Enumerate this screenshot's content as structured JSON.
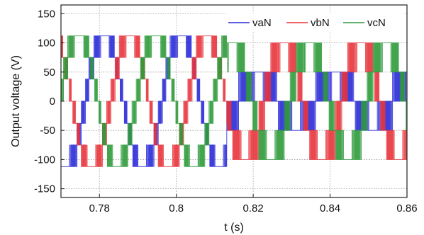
{
  "chart_data": {
    "type": "line",
    "title": "",
    "xlabel": "t (s)",
    "ylabel": "Output voltage (V)",
    "xlim": [
      0.77,
      0.86
    ],
    "ylim": [
      -165,
      165
    ],
    "x_ticks": [
      0.78,
      0.8,
      0.82,
      0.84,
      0.86
    ],
    "x_tick_labels": [
      "0.78",
      "0.8",
      "0.82",
      "0.84",
      "0.86"
    ],
    "y_ticks": [
      150,
      100,
      50,
      0,
      -50,
      -100,
      -150
    ],
    "y_tick_labels": [
      "150",
      "100",
      "50",
      "0",
      "-50",
      "-100",
      "-150"
    ],
    "grid": true,
    "legend_position": "top-right",
    "fault_time": 0.813,
    "series": [
      {
        "name": "vaN",
        "color": "#2a2ad8",
        "phase_deg": 0,
        "levels_before": [
          -112,
          -75,
          -38,
          0,
          38,
          75,
          112
        ],
        "levels_after": [
          -50,
          0,
          50
        ]
      },
      {
        "name": "vbN",
        "color": "#e8343c",
        "phase_deg": -120,
        "levels_before": [
          -112,
          -75,
          -38,
          0,
          38,
          75,
          112
        ],
        "levels_after": [
          -100,
          -50,
          0,
          50,
          100
        ]
      },
      {
        "name": "vcN",
        "color": "#2e9a3a",
        "phase_deg": 120,
        "levels_before": [
          -112,
          -75,
          -38,
          0,
          38,
          75,
          112
        ],
        "levels_after": [
          -100,
          -50,
          0,
          50,
          100
        ]
      }
    ],
    "fundamental_period_s": 0.02
  }
}
